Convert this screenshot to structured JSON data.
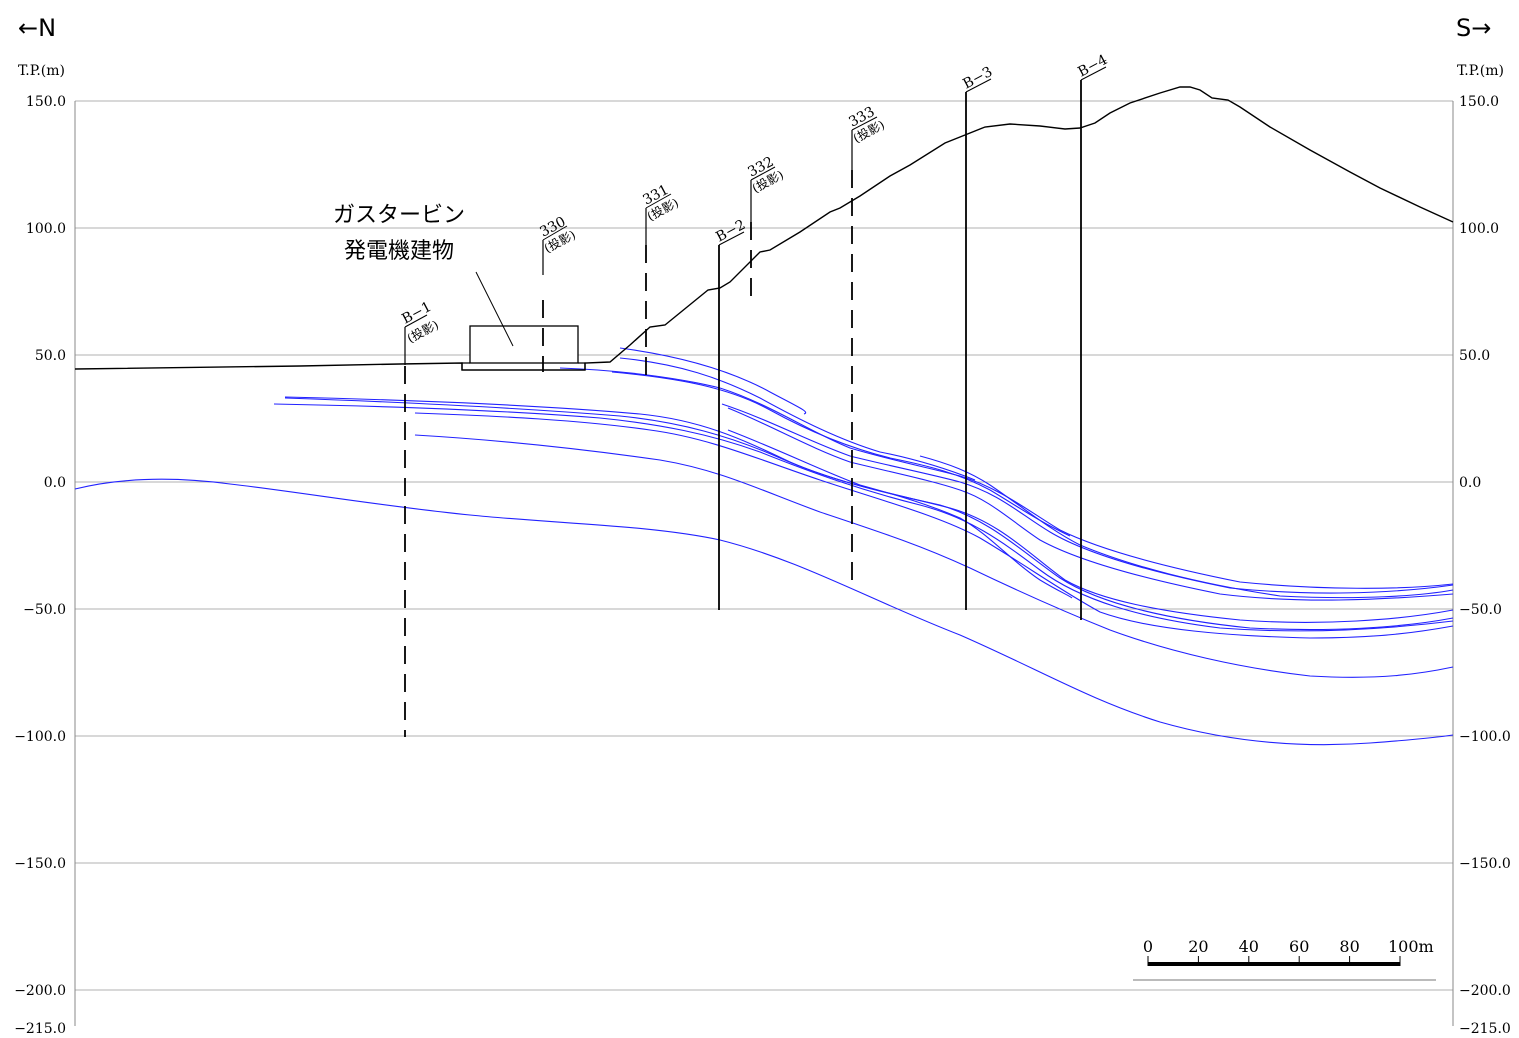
{
  "direction": {
    "north": "←N",
    "south": "S→"
  },
  "axis": {
    "unit": "T.P.(m)",
    "ticks": [
      {
        "value": 150,
        "label": "150.0"
      },
      {
        "value": 100,
        "label": "100.0"
      },
      {
        "value": 50,
        "label": "50.0"
      },
      {
        "value": 0,
        "label": "0.0"
      },
      {
        "value": -50,
        "label": "−50.0"
      },
      {
        "value": -100,
        "label": "−100.0"
      },
      {
        "value": -150,
        "label": "−150.0"
      },
      {
        "value": -200,
        "label": "−200.0"
      },
      {
        "value": -215,
        "label": "−215.0"
      }
    ]
  },
  "building": {
    "label_line1": "ガスタービン",
    "label_line2": "発電機建物"
  },
  "boreholes": [
    {
      "name": "B−1",
      "note": "(投影)"
    },
    {
      "name": "330",
      "note": "(投影)"
    },
    {
      "name": "331",
      "note": "(投影)"
    },
    {
      "name": "B−2",
      "note": ""
    },
    {
      "name": "332",
      "note": "(投影)"
    },
    {
      "name": "333",
      "note": "(投影)"
    },
    {
      "name": "B−3",
      "note": ""
    },
    {
      "name": "B−4",
      "note": ""
    }
  ],
  "scale_bar": {
    "ticks": [
      "0",
      "20",
      "40",
      "60",
      "80",
      "100m"
    ]
  },
  "colors": {
    "ground": "#000000",
    "layers": "#1a1aff",
    "grid": "#b0b0b0"
  }
}
